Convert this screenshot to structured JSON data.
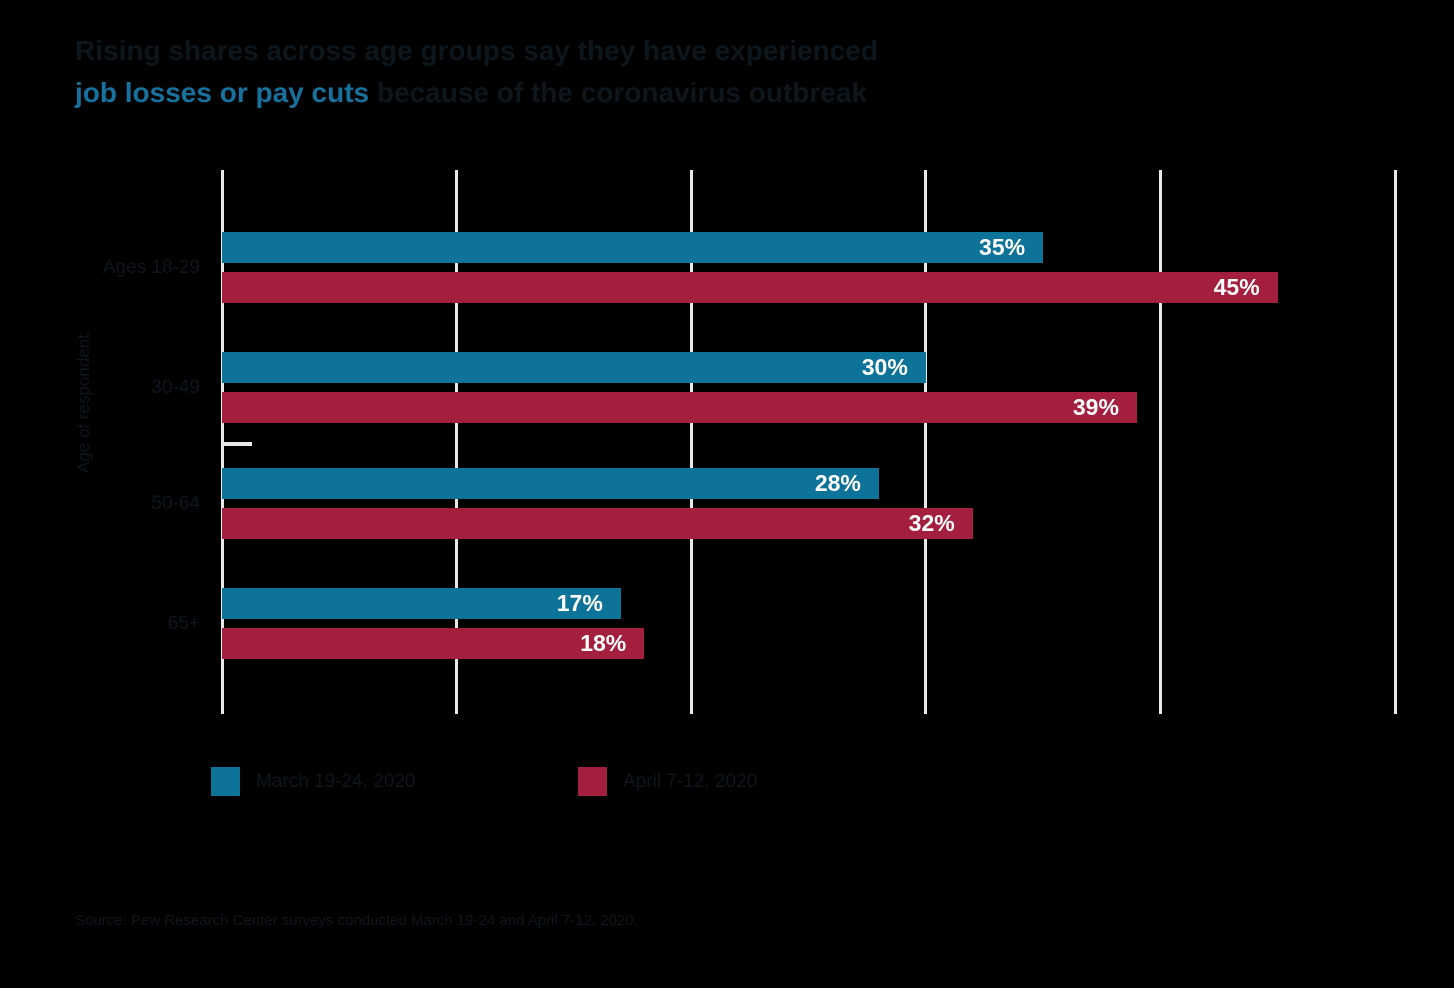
{
  "title": {
    "line1": "Rising shares across age groups say they have experienced",
    "highlight": "job losses or pay cuts",
    "line2_rest": " because of the coronavirus outbreak"
  },
  "source": "Source: Pew Research Center surveys conducted March 19-24 and April 7-12, 2020.",
  "colors": {
    "background": "#000000",
    "title_highlight": "#17719d",
    "dark_text": "#0d161c",
    "gridline": "#e8e8e8",
    "value_label": "#ffffff",
    "series_blue": "#0e7399",
    "series_red": "#a41e3d"
  },
  "chart_data": {
    "type": "bar",
    "orientation": "horizontal",
    "title": "Rising shares across age groups say they have experienced job losses or pay cuts because of the coronavirus outbreak",
    "categories": [
      "Ages 18-29",
      "30-49",
      "50-64",
      "65+"
    ],
    "series": [
      {
        "name": "March 19-24, 2020",
        "color": "#0e7399",
        "values": [
          35,
          30,
          28,
          17
        ]
      },
      {
        "name": "April 7-12, 2020",
        "color": "#a41e3d",
        "values": [
          45,
          39,
          32,
          18
        ]
      }
    ],
    "value_labels": [
      [
        "35%",
        "30%",
        "28%",
        "17%"
      ],
      [
        "45%",
        "39%",
        "32%",
        "18%"
      ]
    ],
    "value_suffix": "%",
    "xlabel": "",
    "ylabel": "Age of respondent",
    "xlim": [
      0,
      50
    ],
    "gridline_step": 10,
    "grid": true,
    "legend_position": "bottom"
  }
}
